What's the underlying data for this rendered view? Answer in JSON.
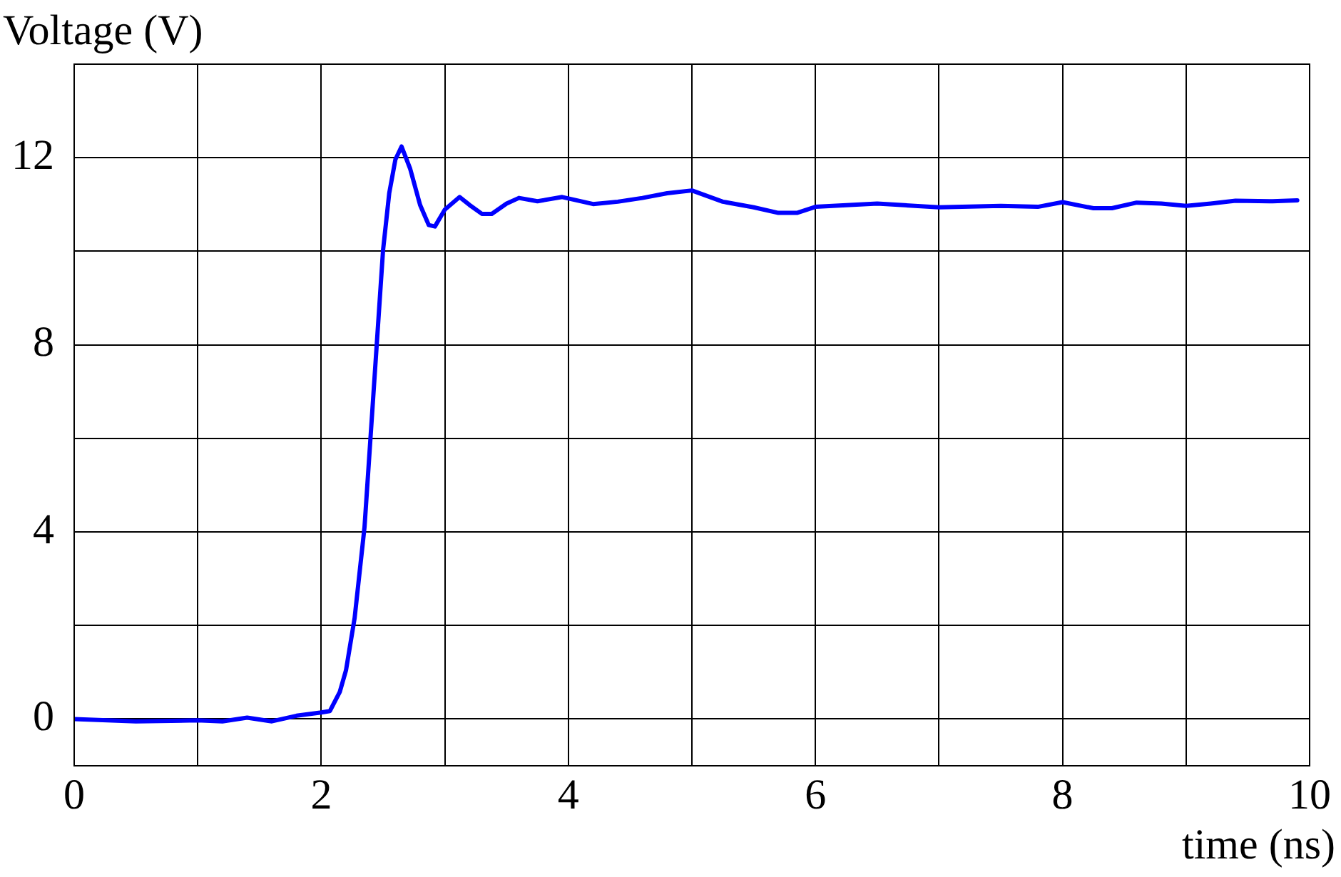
{
  "chart_data": {
    "type": "line",
    "xlabel": "time (ns)",
    "ylabel": "Voltage (V)",
    "xlim": [
      0,
      10
    ],
    "ylim": [
      -1,
      14
    ],
    "xticks": [
      0,
      {
        "value": 1,
        "label": null
      },
      2,
      {
        "value": 3,
        "label": null
      },
      4,
      {
        "value": 5,
        "label": null
      },
      6,
      {
        "value": 7,
        "label": null
      },
      8,
      {
        "value": 9,
        "label": null
      },
      10
    ],
    "yticks": [
      0,
      {
        "value": 2,
        "label": null
      },
      4,
      {
        "value": 6,
        "label": null
      },
      8,
      {
        "value": 10,
        "label": null
      },
      12
    ],
    "grid": true,
    "marker": "none",
    "line_style": "solid",
    "series": [
      {
        "color": "#0000ff",
        "x": [
          0,
          0.5,
          1,
          1.2,
          1.4,
          1.6,
          1.8,
          2,
          2.07,
          2.15,
          2.2,
          2.27,
          2.35,
          2.42,
          2.5,
          2.55,
          2.6,
          2.65,
          2.72,
          2.8,
          2.87,
          2.92,
          3,
          3.12,
          3.2,
          3.3,
          3.38,
          3.5,
          3.6,
          3.75,
          3.95,
          4.2,
          4.4,
          4.6,
          4.8,
          5,
          5.25,
          5.5,
          5.7,
          5.85,
          6,
          6.5,
          7,
          7.5,
          7.8,
          8,
          8.25,
          8.4,
          8.6,
          8.8,
          9,
          9.2,
          9.4,
          9.7,
          9.9
        ],
        "values": [
          0,
          -0.05,
          -0.03,
          -0.05,
          0.03,
          -0.05,
          0.07,
          0.14,
          0.17,
          0.58,
          1.04,
          2.16,
          4.1,
          6.86,
          10.02,
          11.24,
          11.96,
          12.24,
          11.76,
          10.99,
          10.56,
          10.53,
          10.89,
          11.16,
          10.99,
          10.8,
          10.8,
          11.02,
          11.14,
          11.07,
          11.16,
          11.01,
          11.06,
          11.14,
          11.24,
          11.3,
          11.06,
          10.94,
          10.82,
          10.82,
          10.95,
          11.02,
          10.94,
          10.97,
          10.95,
          11.05,
          10.92,
          10.92,
          11.04,
          11.02,
          10.97,
          11.02,
          11.08,
          11.07,
          11.09
        ]
      }
    ]
  }
}
